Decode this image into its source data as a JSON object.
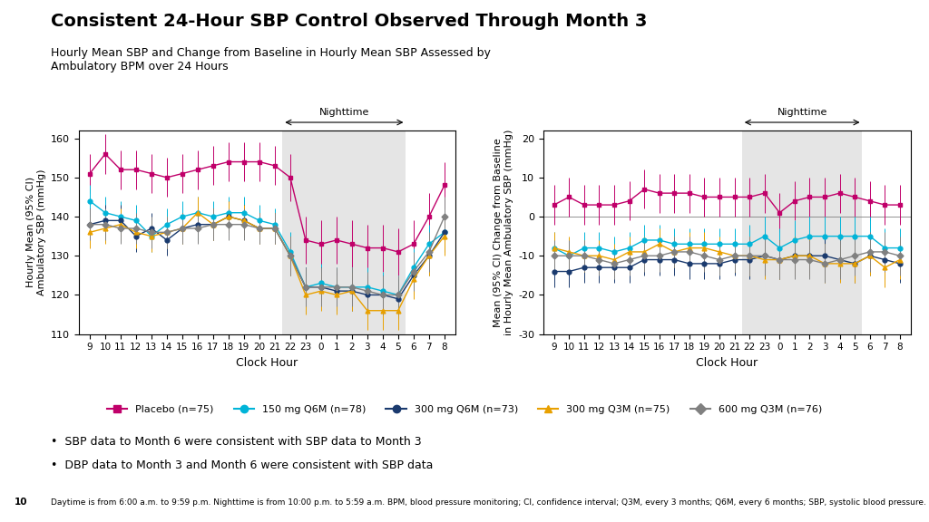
{
  "title": "Consistent 24-Hour SBP Control Observed Through Month 3",
  "subtitle": "Hourly Mean SBP and Change from Baseline in Hourly Mean SBP Assessed by\nAmbulatory BPM over 24 Hours",
  "legend": "lower center",
  "notes": [
    "•  SBP data to Month 6 were consistent with SBP data to Month 3",
    "•  DBP data to Month 3 and Month 6 were consistent with SBP data"
  ],
  "footnote": "Daytime is from 6:00 a.m. to 9:59 p.m. Nighttime is from 10:00 p.m. to 5:59 a.m. BPM, blood pressure monitoring; CI, confidence interval; Q3M, every 3 months; Q6M, every 6 months; SBP, systolic blood pressure.",
  "page_number": "10",
  "chart_data": [
    {
      "type": "line",
      "categories": [
        "9",
        "10",
        "11",
        "12",
        "13",
        "14",
        "15",
        "16",
        "17",
        "18",
        "19",
        "20",
        "21",
        "22",
        "23",
        "0",
        "1",
        "2",
        "3",
        "4",
        "5",
        "6",
        "7",
        "8"
      ],
      "xlabel": "Clock Hour",
      "ylabel": "Hourly Mean (95% CI)\nAmbulatory SBP (mmHg)",
      "ylim": [
        110,
        162
      ],
      "yticks": [
        110,
        120,
        130,
        140,
        150,
        160
      ],
      "grid": false,
      "span": {
        "text": "Nighttime",
        "start": "22",
        "end": "5",
        "color": "#e5e5e5"
      },
      "series": [
        {
          "name": "Placebo (n=75)",
          "color": "#c0006a",
          "marker": "s",
          "values": [
            151,
            156,
            152,
            152,
            151,
            150,
            151,
            152,
            153,
            154,
            154,
            154,
            153,
            150,
            134,
            133,
            134,
            133,
            132,
            132,
            131,
            133,
            140,
            148
          ],
          "errors": [
            5,
            5,
            5,
            5,
            5,
            5,
            5,
            5,
            5,
            5,
            5,
            5,
            5,
            6,
            6,
            6,
            6,
            6,
            6,
            6,
            6,
            6,
            6,
            6
          ]
        },
        {
          "name": "150 mg Q6M (n=78)",
          "color": "#00b4d8",
          "marker": "o",
          "values": [
            144,
            141,
            140,
            139,
            135,
            138,
            140,
            141,
            140,
            141,
            141,
            139,
            138,
            131,
            122,
            123,
            122,
            122,
            122,
            121,
            120,
            127,
            133,
            136
          ],
          "errors": [
            4,
            4,
            4,
            4,
            4,
            4,
            4,
            4,
            4,
            4,
            4,
            4,
            4,
            5,
            5,
            5,
            5,
            5,
            5,
            5,
            5,
            5,
            5,
            5
          ]
        },
        {
          "name": "300 mg Q6M (n=73)",
          "color": "#1a3a6e",
          "marker": "o",
          "values": [
            138,
            139,
            139,
            135,
            137,
            134,
            137,
            138,
            138,
            140,
            139,
            137,
            137,
            130,
            122,
            122,
            121,
            121,
            120,
            120,
            119,
            125,
            130,
            136
          ],
          "errors": [
            4,
            4,
            4,
            4,
            4,
            4,
            4,
            4,
            4,
            4,
            4,
            4,
            4,
            5,
            5,
            5,
            5,
            5,
            5,
            5,
            5,
            5,
            5,
            5
          ]
        },
        {
          "name": "300 mg Q3M (n=75)",
          "color": "#e8a000",
          "marker": "^",
          "values": [
            136,
            137,
            138,
            136,
            135,
            136,
            137,
            141,
            138,
            140,
            139,
            137,
            137,
            130,
            120,
            121,
            120,
            121,
            116,
            116,
            116,
            124,
            130,
            135
          ],
          "errors": [
            4,
            4,
            4,
            4,
            4,
            4,
            4,
            4,
            4,
            4,
            4,
            4,
            4,
            5,
            5,
            5,
            5,
            5,
            5,
            5,
            5,
            5,
            5,
            5
          ]
        },
        {
          "name": "600 mg Q3M (n=76)",
          "color": "#808080",
          "marker": "D",
          "values": [
            138,
            138,
            137,
            137,
            136,
            136,
            137,
            137,
            138,
            138,
            138,
            137,
            137,
            130,
            122,
            122,
            122,
            122,
            121,
            120,
            120,
            126,
            131,
            140
          ],
          "errors": [
            4,
            4,
            4,
            4,
            4,
            4,
            4,
            4,
            4,
            4,
            4,
            4,
            4,
            5,
            5,
            5,
            5,
            5,
            5,
            5,
            5,
            5,
            5,
            5
          ]
        }
      ]
    },
    {
      "type": "line",
      "categories": [
        "9",
        "10",
        "11",
        "12",
        "13",
        "14",
        "15",
        "16",
        "17",
        "18",
        "19",
        "20",
        "21",
        "22",
        "23",
        "0",
        "1",
        "2",
        "3",
        "4",
        "5",
        "6",
        "7",
        "8"
      ],
      "xlabel": "Clock Hour",
      "ylabel": "Mean (95% CI) Change from Baseline\nin Hourly Mean Ambulatory SBP (mmHg)",
      "ylim": [
        -30,
        22
      ],
      "yticks": [
        -30,
        -20,
        -10,
        0,
        10,
        20
      ],
      "grid": false,
      "hline": 0,
      "span": {
        "text": "Nighttime",
        "start": "22",
        "end": "5",
        "color": "#e5e5e5"
      },
      "series": [
        {
          "name": "Placebo (n=75)",
          "color": "#c0006a",
          "marker": "s",
          "values": [
            3,
            5,
            3,
            3,
            3,
            4,
            7,
            6,
            6,
            6,
            5,
            5,
            5,
            5,
            6,
            1,
            4,
            5,
            5,
            6,
            5,
            4,
            3,
            3
          ],
          "errors": [
            5,
            5,
            5,
            5,
            5,
            5,
            5,
            5,
            5,
            5,
            5,
            5,
            5,
            5,
            5,
            5,
            5,
            5,
            5,
            5,
            5,
            5,
            5,
            5
          ]
        },
        {
          "name": "150 mg Q6M (n=78)",
          "color": "#00b4d8",
          "marker": "o",
          "values": [
            -8,
            -10,
            -8,
            -8,
            -9,
            -8,
            -6,
            -6,
            -7,
            -7,
            -7,
            -7,
            -7,
            -7,
            -5,
            -8,
            -6,
            -5,
            -5,
            -5,
            -5,
            -5,
            -8,
            -8
          ],
          "errors": [
            4,
            4,
            4,
            4,
            4,
            4,
            4,
            4,
            4,
            4,
            4,
            4,
            4,
            5,
            5,
            5,
            5,
            5,
            5,
            5,
            5,
            5,
            5,
            5
          ]
        },
        {
          "name": "300 mg Q6M (n=73)",
          "color": "#1a3a6e",
          "marker": "o",
          "values": [
            -14,
            -14,
            -13,
            -13,
            -13,
            -13,
            -11,
            -11,
            -11,
            -12,
            -12,
            -12,
            -11,
            -11,
            -10,
            -11,
            -10,
            -10,
            -10,
            -11,
            -12,
            -10,
            -11,
            -12
          ],
          "errors": [
            4,
            4,
            4,
            4,
            4,
            4,
            4,
            4,
            4,
            4,
            4,
            4,
            4,
            5,
            5,
            5,
            5,
            5,
            5,
            5,
            5,
            5,
            5,
            5
          ]
        },
        {
          "name": "300 mg Q3M (n=75)",
          "color": "#e8a000",
          "marker": "^",
          "values": [
            -8,
            -9,
            -10,
            -10,
            -11,
            -9,
            -9,
            -7,
            -9,
            -8,
            -8,
            -9,
            -10,
            -10,
            -11,
            -11,
            -10,
            -10,
            -12,
            -12,
            -12,
            -10,
            -13,
            -11
          ],
          "errors": [
            4,
            4,
            4,
            4,
            4,
            4,
            4,
            4,
            4,
            4,
            4,
            4,
            4,
            5,
            5,
            5,
            5,
            5,
            5,
            5,
            5,
            5,
            5,
            5
          ]
        },
        {
          "name": "600 mg Q3M (n=76)",
          "color": "#808080",
          "marker": "D",
          "values": [
            -10,
            -10,
            -10,
            -11,
            -12,
            -11,
            -10,
            -10,
            -9,
            -9,
            -10,
            -11,
            -10,
            -10,
            -10,
            -11,
            -11,
            -11,
            -12,
            -11,
            -10,
            -9,
            -9,
            -10
          ],
          "errors": [
            4,
            4,
            4,
            4,
            4,
            4,
            4,
            4,
            4,
            4,
            4,
            4,
            4,
            5,
            5,
            5,
            5,
            5,
            5,
            5,
            5,
            5,
            5,
            5
          ]
        }
      ]
    }
  ]
}
